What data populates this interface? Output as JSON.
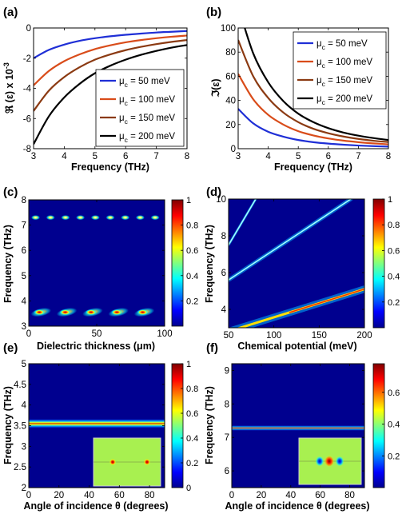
{
  "panels": {
    "a": {
      "label": "(a)"
    },
    "b": {
      "label": "(b)"
    },
    "c": {
      "label": "(c)"
    },
    "d": {
      "label": "(d)"
    },
    "e": {
      "label": "(e)"
    },
    "f": {
      "label": "(f)"
    }
  },
  "colors": {
    "mu50": "#1f2fd6",
    "mu100": "#d94c1a",
    "mu150": "#8b3a12",
    "mu200": "#000000",
    "colormap": "jet"
  },
  "chart_data": [
    {
      "id": "a",
      "type": "line",
      "xlabel": "Frequency (THz)",
      "ylabel": "ℜ (ε) x 10",
      "ylabel_exp": "-3",
      "xlim": [
        3,
        8
      ],
      "ylim": [
        -8,
        0
      ],
      "xticks": [
        "3",
        "4",
        "5",
        "6",
        "7",
        "8"
      ],
      "yticks": [
        "-8",
        "-6",
        "-4",
        "-2",
        "0"
      ],
      "legend": "right",
      "x": [
        3,
        3.5,
        4,
        4.5,
        5,
        5.5,
        6,
        6.5,
        7,
        7.5,
        8
      ],
      "series": [
        {
          "name": "μ",
          "sub": "c",
          "suffix": " = 50 meV",
          "color": "#1f2fd6",
          "values": [
            -2.0,
            -1.45,
            -1.1,
            -0.85,
            -0.68,
            -0.55,
            -0.45,
            -0.37,
            -0.3,
            -0.25,
            -0.2
          ]
        },
        {
          "name": "μ",
          "sub": "c",
          "suffix": " = 100 meV",
          "color": "#d94c1a",
          "values": [
            -3.8,
            -2.85,
            -2.2,
            -1.75,
            -1.4,
            -1.15,
            -0.95,
            -0.8,
            -0.68,
            -0.58,
            -0.5
          ]
        },
        {
          "name": "μ",
          "sub": "c",
          "suffix": " = 150 meV",
          "color": "#8b3a12",
          "values": [
            -5.5,
            -4.15,
            -3.25,
            -2.6,
            -2.1,
            -1.75,
            -1.47,
            -1.25,
            -1.07,
            -0.92,
            -0.8
          ]
        },
        {
          "name": "μ",
          "sub": "c",
          "suffix": " = 200 meV",
          "color": "#000000",
          "values": [
            -7.7,
            -5.85,
            -4.6,
            -3.7,
            -3.0,
            -2.5,
            -2.1,
            -1.78,
            -1.52,
            -1.3,
            -1.13
          ]
        }
      ]
    },
    {
      "id": "b",
      "type": "line",
      "xlabel": "Frequency (THz)",
      "ylabel": "ℑ(ε)",
      "xlim": [
        3,
        8
      ],
      "ylim": [
        0,
        100
      ],
      "xticks": [
        "3",
        "4",
        "5",
        "6",
        "7",
        "8"
      ],
      "yticks": [
        "0",
        "20",
        "40",
        "60",
        "80",
        "100"
      ],
      "legend": "top-right",
      "x": [
        3,
        3.5,
        4,
        4.5,
        5,
        5.5,
        6,
        6.5,
        7,
        7.5,
        8
      ],
      "series": [
        {
          "name": "μ",
          "sub": "c",
          "suffix": " = 50 meV",
          "color": "#1f2fd6",
          "values": [
            33,
            21,
            14,
            10,
            7.2,
            5.4,
            4.2,
            3.3,
            2.6,
            2.1,
            1.7
          ]
        },
        {
          "name": "μ",
          "sub": "c",
          "suffix": " = 100 meV",
          "color": "#d94c1a",
          "values": [
            62,
            41,
            28,
            20,
            14.5,
            11,
            8.5,
            6.7,
            5.4,
            4.4,
            3.6
          ]
        },
        {
          "name": "μ",
          "sub": "c",
          "suffix": " = 150 meV",
          "color": "#8b3a12",
          "values": [
            90,
            60,
            42,
            30,
            22,
            16.5,
            12.8,
            10.1,
            8.1,
            6.6,
            5.5
          ]
        },
        {
          "name": "μ",
          "sub": "c",
          "suffix": " = 200 meV",
          "color": "#000000",
          "values": [
            118,
            79,
            55,
            39.5,
            29,
            22,
            17,
            13.4,
            10.8,
            8.8,
            7.2
          ]
        }
      ]
    },
    {
      "id": "c",
      "type": "heatmap",
      "xlabel": "Dielectric thickness (μm)",
      "ylabel": "Frequency (THz)",
      "xlim": [
        0,
        100
      ],
      "ylim": [
        3,
        8
      ],
      "xticks": [
        "0",
        "50",
        "100"
      ],
      "yticks": [
        "3",
        "4",
        "5",
        "6",
        "7",
        "8"
      ],
      "colorbar": {
        "min": 0,
        "max": 1,
        "ticks": [
          "0.2",
          "0.4",
          "0.6",
          "0.8",
          "1"
        ]
      },
      "upper_band": {
        "freq": 7.3,
        "spots_x": [
          5,
          16,
          27,
          38,
          49,
          60,
          71,
          82,
          93
        ]
      },
      "lower_band": {
        "freq": 3.55,
        "spots_x": [
          9,
          28,
          47,
          66,
          85
        ]
      }
    },
    {
      "id": "d",
      "type": "heatmap",
      "xlabel": "Chemical potential (meV)",
      "ylabel": "Frequency (THz)",
      "xlim": [
        50,
        200
      ],
      "ylim": [
        3,
        10
      ],
      "xticks": [
        "50",
        "100",
        "150",
        "200"
      ],
      "yticks": [
        "4",
        "6",
        "8",
        "10"
      ],
      "colorbar": {
        "min": 0,
        "max": 1,
        "ticks": [
          "0.2",
          "0.4",
          "0.6",
          "0.8",
          "1"
        ]
      },
      "modes": [
        {
          "x": [
            50,
            200
          ],
          "y": [
            2.8,
            5.1
          ],
          "strength": 0.95
        },
        {
          "x": [
            50,
            185
          ],
          "y": [
            5.6,
            10.0
          ],
          "strength": 0.55
        },
        {
          "x": [
            50,
            80
          ],
          "y": [
            7.5,
            10.0
          ],
          "strength": 0.35
        }
      ]
    },
    {
      "id": "e",
      "type": "heatmap",
      "xlabel": "Angle of incidence θ (degrees)",
      "ylabel": "Frequency (THz)",
      "xlim": [
        0,
        90
      ],
      "ylim": [
        2,
        5
      ],
      "xticks": [
        "0",
        "20",
        "40",
        "60",
        "80"
      ],
      "yticks": [
        "2",
        "2.5",
        "3",
        "3.5",
        "4",
        "4.5",
        "5"
      ],
      "colorbar": {
        "min": 0,
        "max": 1,
        "ticks": [
          "0",
          "0.2",
          "0.4",
          "0.6",
          "0.8",
          "1"
        ]
      },
      "band": {
        "freq": 3.55,
        "x_end": 90
      }
    },
    {
      "id": "f",
      "type": "heatmap",
      "xlabel": "Angle of incidence θ (degrees)",
      "ylabel": "Frequency (THz)",
      "xlim": [
        0,
        90
      ],
      "ylim": [
        5.5,
        9.2
      ],
      "xticks": [
        "0",
        "20",
        "40",
        "60",
        "80"
      ],
      "yticks": [
        "6",
        "7",
        "8",
        "9"
      ],
      "colorbar": {
        "min": 0,
        "max": 0.78,
        "ticks": [
          "0.2",
          "0.4",
          "0.6"
        ]
      },
      "band": {
        "freq": 7.28,
        "x_end": 90
      }
    }
  ]
}
